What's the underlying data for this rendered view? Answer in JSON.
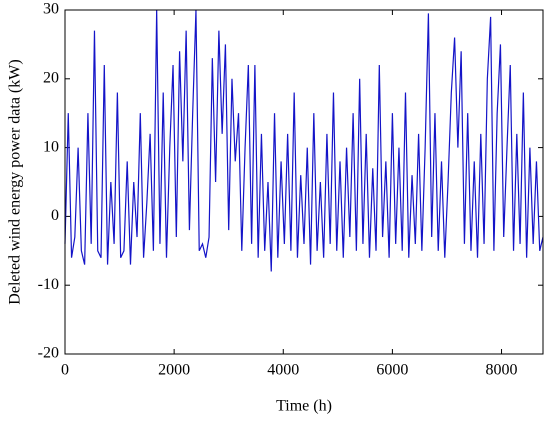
{
  "chart_data": {
    "type": "line",
    "xlabel": "Time (h)",
    "ylabel": "Deleted wind energy power data (kW)",
    "xlim": [
      0,
      8760
    ],
    "xticks": [
      0,
      2000,
      4000,
      6000,
      8000
    ],
    "ylim": [
      -20,
      30
    ],
    "yticks": [
      -20,
      -10,
      0,
      10,
      20,
      30
    ],
    "x": [
      0,
      60,
      120,
      180,
      240,
      300,
      360,
      420,
      480,
      540,
      600,
      660,
      720,
      780,
      840,
      900,
      960,
      1020,
      1080,
      1140,
      1200,
      1260,
      1320,
      1380,
      1440,
      1500,
      1560,
      1620,
      1680,
      1740,
      1800,
      1860,
      1920,
      1980,
      2040,
      2100,
      2160,
      2220,
      2280,
      2340,
      2400,
      2460,
      2520,
      2580,
      2640,
      2700,
      2760,
      2820,
      2880,
      2940,
      3000,
      3060,
      3120,
      3180,
      3240,
      3300,
      3360,
      3420,
      3480,
      3540,
      3600,
      3660,
      3720,
      3780,
      3840,
      3900,
      3960,
      4020,
      4080,
      4140,
      4200,
      4260,
      4320,
      4380,
      4440,
      4500,
      4560,
      4620,
      4680,
      4740,
      4800,
      4860,
      4920,
      4980,
      5040,
      5100,
      5160,
      5220,
      5280,
      5340,
      5400,
      5460,
      5520,
      5580,
      5640,
      5700,
      5760,
      5820,
      5880,
      5940,
      6000,
      6060,
      6120,
      6180,
      6240,
      6300,
      6360,
      6420,
      6480,
      6540,
      6600,
      6660,
      6720,
      6780,
      6840,
      6900,
      6960,
      7020,
      7080,
      7140,
      7200,
      7260,
      7320,
      7380,
      7440,
      7500,
      7560,
      7620,
      7680,
      7740,
      7800,
      7860,
      7920,
      7980,
      8040,
      8100,
      8160,
      8220,
      8280,
      8340,
      8400,
      8460,
      8520,
      8580,
      8640,
      8700,
      8760
    ],
    "series": [
      {
        "color": "#1414c8",
        "values": [
          -4,
          15,
          -6,
          -3,
          10,
          -5,
          -7,
          15,
          -4,
          27,
          -5,
          -6,
          22,
          -7,
          5,
          -4,
          18,
          -6,
          -5,
          8,
          -7,
          5,
          -3,
          15,
          -6,
          2,
          12,
          -5,
          30,
          -4,
          18,
          -6,
          10,
          22,
          -3,
          24,
          8,
          27,
          -2,
          15,
          30,
          -5,
          -4,
          -6,
          -3,
          23,
          5,
          27,
          12,
          25,
          -2,
          20,
          8,
          15,
          -5,
          10,
          22,
          -4,
          22,
          -6,
          12,
          -5,
          5,
          -8,
          15,
          -6,
          8,
          -4,
          12,
          -5,
          18,
          -6,
          6,
          -4,
          10,
          -7,
          15,
          -5,
          5,
          -6,
          12,
          -4,
          18,
          -5,
          8,
          -6,
          10,
          -3,
          15,
          -5,
          20,
          -4,
          12,
          -6,
          7,
          -5,
          22,
          -3,
          8,
          -6,
          15,
          -4,
          10,
          -5,
          18,
          -6,
          6,
          -4,
          12,
          -5,
          10,
          29.5,
          -3,
          15,
          -5,
          8,
          -6,
          5,
          18,
          26,
          10,
          24,
          -4,
          15,
          -5,
          8,
          -6,
          12,
          -4,
          20,
          29,
          -5,
          15,
          25,
          -3,
          10,
          22,
          -5,
          12,
          -4,
          18,
          -6,
          10,
          -4,
          8,
          -5,
          -3
        ]
      }
    ]
  }
}
